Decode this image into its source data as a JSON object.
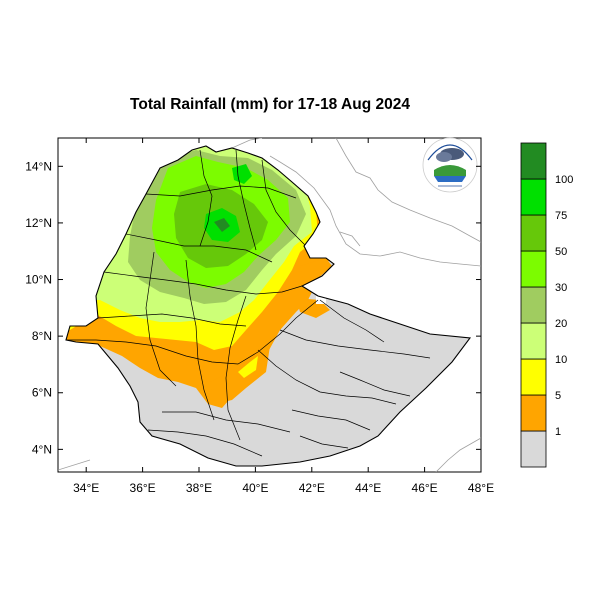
{
  "title": "Total Rainfall (mm) for 17-18 Aug 2024",
  "map": {
    "lon_range": [
      33,
      48
    ],
    "lat_range": [
      3.2,
      15
    ],
    "lat_ticks": [
      "14°N",
      "12°N",
      "10°N",
      "8°N",
      "6°N",
      "4°N"
    ],
    "lat_tick_values": [
      14,
      12,
      10,
      8,
      6,
      4
    ],
    "lon_ticks": [
      "34°E",
      "36°E",
      "38°E",
      "40°E",
      "42°E",
      "44°E",
      "46°E",
      "48°E"
    ],
    "lon_tick_values": [
      34,
      36,
      38,
      40,
      42,
      44,
      46,
      48
    ],
    "no_rain_color": "#d9d9d9",
    "logo_icon": "ethiopian-meteorology-institute-logo"
  },
  "legend": {
    "labels": [
      "1",
      "5",
      "10",
      "20",
      "30",
      "50",
      "75",
      "100"
    ],
    "colors": [
      "#d9d9d9",
      "#ffa500",
      "#ffff00",
      "#ccff77",
      "#a0cc60",
      "#7cfc00",
      "#66c80a",
      "#00e000",
      "#228b22"
    ]
  }
}
